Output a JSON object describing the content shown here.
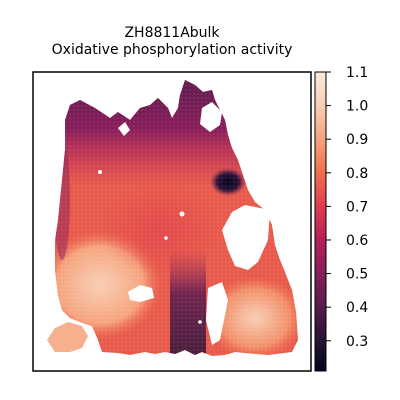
{
  "chart_data": {
    "type": "heatmap",
    "title": "ZH8811Abulk",
    "subtitle": "Oxidative phosphorylation activity",
    "xlabel": "",
    "ylabel": "",
    "colorbar": {
      "min": 0.21,
      "max": 1.1,
      "ticks": [
        "1.1",
        "1.0",
        "0.9",
        "0.8",
        "0.7",
        "0.6",
        "0.5",
        "0.4",
        "0.3"
      ],
      "tick_values": [
        1.1,
        1.0,
        0.9,
        0.8,
        0.7,
        0.6,
        0.5,
        0.4,
        0.3
      ],
      "colormap": "rocket",
      "colors": [
        "#03051a",
        "#2b1339",
        "#5a1b4f",
        "#8a1e5b",
        "#b91f59",
        "#e03e4c",
        "#f0714f",
        "#f6a47e",
        "#f8cfb5",
        "#faebdd"
      ]
    },
    "grid": false,
    "regions": [
      {
        "name": "lower-left lobe",
        "level": 0.93
      },
      {
        "name": "lower-right lobe",
        "level": 0.9
      },
      {
        "name": "upper band",
        "level": 0.6
      },
      {
        "name": "central body",
        "level": 0.8
      },
      {
        "name": "dark center-right spot",
        "level": 0.28
      },
      {
        "name": "center-bottom channel",
        "level": 0.45
      }
    ]
  }
}
